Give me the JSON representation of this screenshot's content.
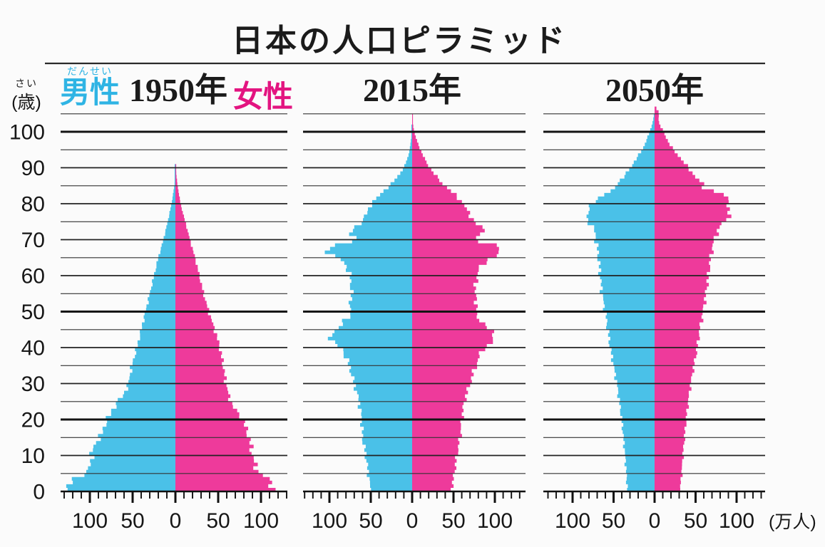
{
  "title": "日本の人口ピラミッド",
  "legend": {
    "male_label": "男性",
    "male_furigana": "だんせい",
    "female_label": "女性"
  },
  "y_axis": {
    "unit_label": "(歳)",
    "unit_furigana": "さい",
    "tick_ages": [
      100,
      90,
      80,
      70,
      60,
      50,
      40,
      30,
      20,
      10,
      0
    ],
    "gridline_step": 5,
    "bold_gridline_ages": [
      100,
      50,
      20
    ],
    "max_gridline_age": 105
  },
  "x_axis": {
    "tick_label_values": [
      -100,
      -50,
      0,
      50,
      100
    ],
    "minor_tick_step": 10,
    "range": 130,
    "unit_label": "(万人)"
  },
  "colors": {
    "male_fill": "#4ac1e8",
    "female_fill": "#ee3a9b",
    "male_text": "#2fb4e4",
    "female_text": "#e31480",
    "line": "#1a1a1a"
  },
  "chart_data": {
    "type": "population-pyramid",
    "title": "日本の人口ピラミッド",
    "unit": "万人 per 1-year age class (10k persons)",
    "age_axis_label": "(歳)",
    "value_axis_label": "(万人)",
    "value_axis_range": [
      -130,
      130
    ],
    "panels": [
      {
        "year_label": "1950年",
        "ages": [
          0,
          1,
          2,
          4,
          5,
          7,
          10,
          13,
          15,
          20,
          24,
          25,
          27,
          30,
          35,
          40,
          45,
          50,
          55,
          60,
          65,
          70,
          75,
          80,
          83,
          85,
          88,
          90,
          91
        ],
        "male": [
          127,
          125,
          123,
          118,
          103,
          100,
          98,
          95,
          88,
          80,
          70,
          68,
          60,
          55,
          51,
          45,
          40,
          35,
          30,
          25,
          20,
          14,
          9,
          4.5,
          2.5,
          1.2,
          0.4,
          0.1,
          0
        ],
        "female": [
          116,
          114,
          112,
          108,
          97,
          94,
          90,
          88,
          86,
          79,
          66,
          65,
          62,
          59,
          56,
          52,
          46,
          39,
          33,
          28,
          23,
          17,
          11.5,
          6,
          4,
          2.5,
          1.2,
          0.5,
          0.2
        ]
      },
      {
        "year_label": "2015年",
        "ages": [
          0,
          5,
          10,
          15,
          20,
          25,
          30,
          35,
          40,
          41,
          43,
          45,
          47,
          48,
          49,
          50,
          55,
          60,
          63,
          65,
          66,
          68,
          69,
          70,
          71,
          72,
          73,
          75,
          78,
          80,
          83,
          85,
          88,
          90,
          93,
          95,
          98,
          100,
          102,
          104,
          105
        ],
        "male": [
          50,
          53,
          56,
          60,
          61,
          64,
          70,
          76,
          85,
          95,
          99,
          92,
          83,
          80,
          72,
          76,
          73,
          75,
          80,
          89,
          102,
          100,
          85,
          63,
          73,
          74,
          72,
          60,
          54,
          49,
          37,
          27,
          16,
          10,
          5,
          3,
          1.2,
          0.6,
          0,
          0,
          0
        ],
        "female": [
          47,
          51,
          54,
          58,
          60,
          63,
          70,
          77,
          86,
          96,
          100,
          94,
          85,
          82,
          74,
          79,
          76,
          78,
          84,
          95,
          107,
          106,
          92,
          70,
          82,
          88,
          86,
          75,
          67,
          62,
          50,
          39,
          28,
          21,
          14,
          10,
          5,
          2.5,
          1,
          0.4,
          0.1
        ]
      },
      {
        "year_label": "2050年",
        "ages": [
          0,
          5,
          10,
          15,
          20,
          25,
          30,
          35,
          40,
          45,
          48,
          50,
          52,
          55,
          58,
          60,
          62,
          65,
          68,
          70,
          72,
          74,
          75,
          76,
          78,
          80,
          82,
          83,
          84,
          85,
          87,
          88,
          90,
          92,
          95,
          97,
          100,
          102,
          103,
          104,
          105,
          106,
          107
        ],
        "male": [
          33,
          34.5,
          36,
          38,
          40,
          43,
          46,
          50,
          54,
          57,
          59,
          60,
          62,
          64,
          65.5,
          66.5,
          67,
          68.5,
          70,
          71.5,
          73,
          76,
          81,
          83.5,
          81,
          76,
          66,
          60,
          46,
          48,
          40,
          36,
          29,
          24,
          15,
          11,
          6,
          3,
          2,
          1,
          0,
          0,
          0
        ],
        "female": [
          31,
          33,
          34.5,
          36.5,
          38.5,
          41,
          44,
          48,
          52,
          55,
          57.5,
          59,
          60.5,
          62.5,
          64.5,
          65.5,
          66.5,
          68.5,
          70.5,
          73,
          76,
          80,
          86,
          90,
          91,
          90,
          87,
          85,
          58,
          61,
          52,
          48,
          41,
          34,
          23,
          17,
          11,
          6,
          5,
          5,
          5,
          4.5,
          0
        ]
      }
    ],
    "annotations": {
      "hinoeuma_notch_1966": "single-year dip visible at age 49 (2015) and age 84 (2050)",
      "baby_boom_1947_49": "bulge at ages 66-68 in 2015",
      "second_baby_boom_1971_74": "bulge at ages 41-44 in 2015, ages 75-78 in 2050"
    }
  }
}
